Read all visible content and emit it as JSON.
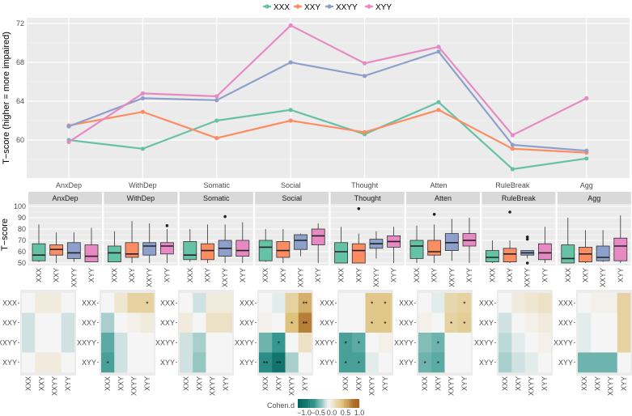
{
  "groups": [
    "XXX",
    "XXY",
    "XXYY",
    "XYY"
  ],
  "colors": {
    "XXX": "#66c2a5",
    "XXY": "#fc8d62",
    "XXYY": "#8da0cb",
    "XYY": "#e78ac3"
  },
  "chart_data": [
    {
      "type": "line",
      "ylabel": "T−score (higher = more impaired)",
      "xlabel": "",
      "categories": [
        "AnxDep",
        "WithDep",
        "Somatic",
        "Social",
        "Thought",
        "Atten",
        "RuleBreak",
        "Agg"
      ],
      "ylim": [
        56.1,
        72.6
      ],
      "yticks": [
        60,
        64,
        68,
        72
      ],
      "legend": "top",
      "series": [
        {
          "name": "XXX",
          "values": [
            60.0,
            59.1,
            62.0,
            63.1,
            60.6,
            63.9,
            57.0,
            58.1
          ]
        },
        {
          "name": "XXY",
          "values": [
            61.5,
            62.9,
            60.2,
            62.0,
            60.8,
            63.1,
            59.1,
            58.7
          ]
        },
        {
          "name": "XXYY",
          "values": [
            61.4,
            64.3,
            64.1,
            68.0,
            66.6,
            69.1,
            59.5,
            58.9
          ]
        },
        {
          "name": "XYY",
          "values": [
            59.8,
            64.8,
            64.5,
            71.8,
            67.9,
            69.6,
            60.5,
            64.3
          ]
        }
      ]
    },
    {
      "type": "box",
      "ylabel": "T−score",
      "ylim": [
        48,
        102
      ],
      "yticks": [
        50,
        60,
        70,
        80,
        90,
        100
      ],
      "facets": [
        {
          "name": "AnxDep",
          "boxes": [
            [
              51,
              52,
              57,
              67,
              84,
              []
            ],
            [
              50,
              57,
              62,
              66,
              77,
              []
            ],
            [
              51,
              54,
              59,
              68,
              77,
              []
            ],
            [
              51,
              51,
              56,
              66,
              81,
              []
            ]
          ]
        },
        {
          "name": "WithDep",
          "boxes": [
            [
              51,
              51,
              59,
              65,
              78,
              []
            ],
            [
              50,
              55,
              58,
              68,
              87,
              []
            ],
            [
              50,
              57,
              65,
              68,
              85,
              []
            ],
            [
              50,
              58,
              65,
              68,
              80,
              [
                83
              ]
            ]
          ]
        },
        {
          "name": "Somatic",
          "boxes": [
            [
              51,
              53,
              57,
              69,
              80,
              []
            ],
            [
              50,
              53,
              61,
              67,
              84,
              []
            ],
            [
              50,
              56,
              63,
              70,
              84,
              [
                91
              ]
            ],
            [
              50,
              56,
              61,
              70,
              86,
              []
            ]
          ]
        },
        {
          "name": "Social",
          "boxes": [
            [
              51,
              52,
              64,
              70,
              80,
              []
            ],
            [
              50,
              55,
              61,
              69,
              80,
              []
            ],
            [
              56,
              62,
              70,
              75,
              76,
              []
            ],
            [
              50,
              66,
              74,
              80,
              85,
              []
            ]
          ]
        },
        {
          "name": "Thought",
          "boxes": [
            [
              50,
              50,
              60,
              68,
              82,
              []
            ],
            [
              50,
              50,
              61,
              67,
              76,
              [
                98
              ]
            ],
            [
              54,
              63,
              67,
              71,
              78,
              []
            ],
            [
              50,
              64,
              69,
              74,
              82,
              []
            ]
          ]
        },
        {
          "name": "Atten",
          "boxes": [
            [
              50,
              54,
              65,
              70,
              83,
              []
            ],
            [
              50,
              57,
              60,
              70,
              84,
              [
                93
              ]
            ],
            [
              52,
              61,
              68,
              76,
              89,
              []
            ],
            [
              50,
              65,
              70,
              76,
              90,
              []
            ]
          ]
        },
        {
          "name": "RuleBreak",
          "boxes": [
            [
              50,
              51,
              55,
              61,
              70,
              []
            ],
            [
              50,
              51,
              58,
              63,
              70,
              [
                95
              ]
            ],
            [
              54,
              57,
              59,
              61,
              61,
              [
                73,
                71,
                50
              ]
            ],
            [
              50,
              53,
              59,
              67,
              82,
              []
            ]
          ]
        },
        {
          "name": "Agg",
          "boxes": [
            [
              50,
              50,
              54,
              66,
              90,
              []
            ],
            [
              50,
              51,
              58,
              64,
              79,
              []
            ],
            [
              51,
              52,
              55,
              65,
              79,
              []
            ],
            [
              50,
              52,
              65,
              72,
              92,
              []
            ]
          ]
        }
      ],
      "box_format": "[whisker_low, q1, median, q3, whisker_high, outliers]"
    },
    {
      "type": "heatmap",
      "legend_title": "Cohen.d",
      "legend_ticks": [
        "−1.0",
        "−0.5",
        "0.0",
        "0.5",
        "1.0"
      ],
      "range": [
        -1,
        1
      ],
      "rows": [
        "XXX",
        "XXY",
        "XXYY",
        "XYY"
      ],
      "cols": [
        "XXX",
        "XXY",
        "XXYY",
        "XYY"
      ],
      "facets": [
        {
          "name": "AnxDep",
          "values": [
            [
              0,
              0.1,
              0.1,
              0
            ],
            [
              -0.1,
              0,
              0,
              -0.1
            ],
            [
              -0.1,
              0,
              0,
              -0.1
            ],
            [
              0,
              0.1,
              0.1,
              0
            ]
          ],
          "stars": [
            [
              "",
              "",
              "",
              ""
            ],
            [
              "",
              "",
              "",
              ""
            ],
            [
              "",
              "",
              "",
              ""
            ],
            [
              "",
              "",
              "",
              ""
            ]
          ]
        },
        {
          "name": "WithDep",
          "values": [
            [
              0,
              0.15,
              0.35,
              0.35
            ],
            [
              -0.2,
              0,
              0.05,
              0.1
            ],
            [
              -0.4,
              -0.1,
              0,
              0
            ],
            [
              -0.45,
              -0.1,
              0,
              0
            ]
          ],
          "stars": [
            [
              "",
              "",
              "",
              "*"
            ],
            [
              "",
              "",
              "",
              ""
            ],
            [
              "",
              "",
              "",
              ""
            ],
            [
              "*",
              "",
              "",
              ""
            ]
          ]
        },
        {
          "name": "Somatic",
          "values": [
            [
              0,
              -0.1,
              0.1,
              0.1
            ],
            [
              0.1,
              0,
              0.2,
              0.2
            ],
            [
              -0.1,
              -0.2,
              0,
              0
            ],
            [
              -0.1,
              -0.25,
              0,
              0
            ]
          ],
          "stars": [
            [
              "",
              "",
              "",
              ""
            ],
            [
              "",
              "",
              "",
              ""
            ],
            [
              "",
              "",
              "",
              ""
            ],
            [
              "",
              "",
              "",
              ""
            ]
          ]
        },
        {
          "name": "Social",
          "values": [
            [
              0,
              -0.05,
              0.35,
              0.6
            ],
            [
              0.05,
              0,
              0.5,
              0.85
            ],
            [
              -0.35,
              -0.5,
              0,
              0.2
            ],
            [
              -0.6,
              -0.85,
              -0.2,
              0
            ]
          ],
          "stars": [
            [
              "",
              "",
              "",
              "**"
            ],
            [
              "",
              "",
              "*",
              "**"
            ],
            [
              "",
              "*",
              "",
              ""
            ],
            [
              "**",
              "**",
              "",
              ""
            ]
          ]
        },
        {
          "name": "Thought",
          "values": [
            [
              0,
              0,
              0.45,
              0.45
            ],
            [
              0,
              0,
              0.45,
              0.45
            ],
            [
              -0.45,
              -0.4,
              0,
              0.05
            ],
            [
              -0.45,
              -0.45,
              -0.05,
              0
            ]
          ],
          "stars": [
            [
              "",
              "",
              "*",
              "*"
            ],
            [
              "",
              "",
              "*",
              "*"
            ],
            [
              "*",
              "*",
              "",
              ""
            ],
            [
              "*",
              "*",
              "",
              ""
            ]
          ]
        },
        {
          "name": "Atten",
          "values": [
            [
              0,
              -0.05,
              0.3,
              0.35
            ],
            [
              0.05,
              0,
              0.35,
              0.4
            ],
            [
              -0.3,
              -0.35,
              0,
              0
            ],
            [
              -0.35,
              -0.4,
              0,
              0
            ]
          ],
          "stars": [
            [
              "",
              "",
              "",
              "*"
            ],
            [
              "",
              "",
              "*",
              "*"
            ],
            [
              "",
              "*",
              "",
              ""
            ],
            [
              "*",
              "*",
              "",
              ""
            ]
          ]
        },
        {
          "name": "RuleBreak",
          "values": [
            [
              0,
              0.1,
              0.15,
              0.2
            ],
            [
              -0.1,
              0,
              0.05,
              0.1
            ],
            [
              -0.15,
              -0.05,
              0,
              0.05
            ],
            [
              -0.2,
              -0.1,
              -0.05,
              0
            ]
          ],
          "stars": [
            [
              "",
              "",
              "",
              ""
            ],
            [
              "",
              "",
              "",
              ""
            ],
            [
              "",
              "",
              "",
              ""
            ],
            [
              "",
              "",
              "",
              ""
            ]
          ]
        },
        {
          "name": "Agg",
          "values": [
            [
              0,
              0.05,
              0.05,
              0.35
            ],
            [
              -0.05,
              0,
              0,
              0.35
            ],
            [
              -0.05,
              0,
              0,
              0.35
            ],
            [
              -0.35,
              -0.35,
              -0.35,
              0
            ]
          ],
          "stars": [
            [
              "",
              "",
              "",
              ""
            ],
            [
              "",
              "",
              "",
              ""
            ],
            [
              "",
              "",
              "",
              ""
            ],
            [
              "",
              "",
              "",
              ""
            ]
          ]
        }
      ]
    }
  ]
}
